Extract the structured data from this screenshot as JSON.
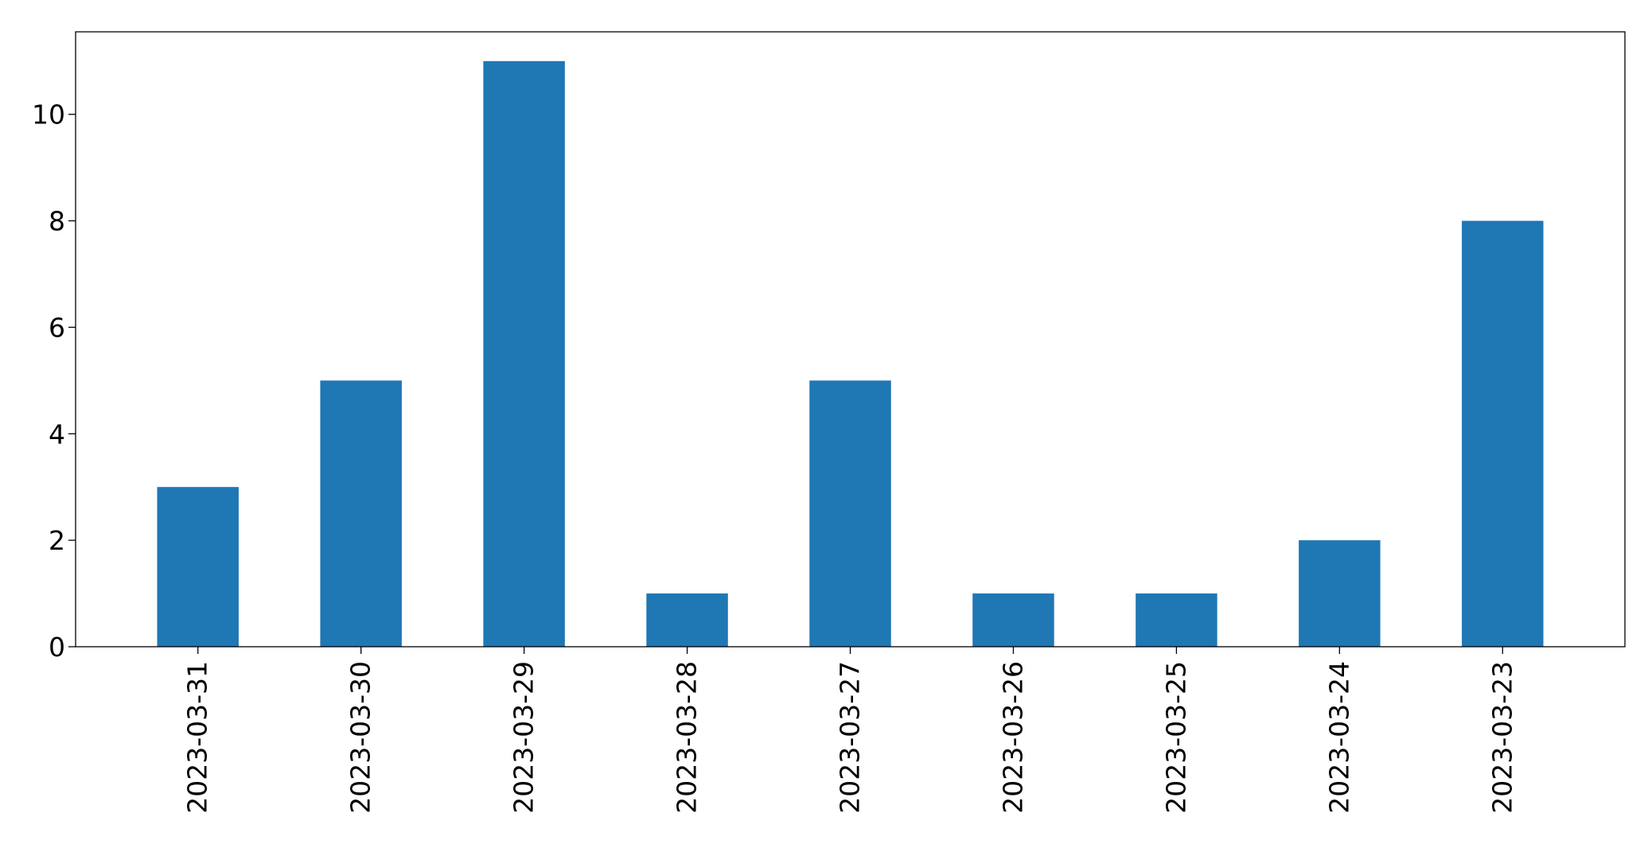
{
  "chart_data": {
    "type": "bar",
    "categories": [
      "2023-03-31",
      "2023-03-30",
      "2023-03-29",
      "2023-03-28",
      "2023-03-27",
      "2023-03-26",
      "2023-03-25",
      "2023-03-24",
      "2023-03-23"
    ],
    "values": [
      3,
      5,
      11,
      1,
      5,
      1,
      1,
      2,
      8
    ],
    "ylim": [
      0,
      11.55
    ],
    "yticks": [
      0,
      2,
      4,
      6,
      8,
      10
    ],
    "title": "",
    "xlabel": "",
    "ylabel": "",
    "grid": false,
    "legend": false,
    "bar_color": "#1f77b4"
  }
}
